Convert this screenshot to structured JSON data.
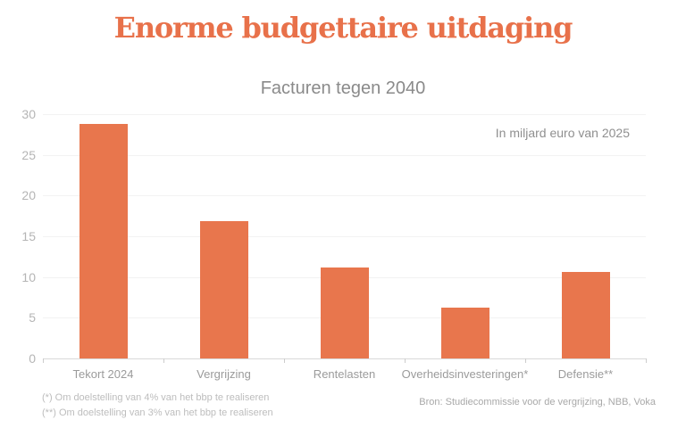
{
  "page": {
    "title": "Enorme budgettaire uitdaging",
    "subtitle": "Facturen tegen 2040",
    "unit_note": "In miljard euro van 2025",
    "footnotes": [
      "(*) Om doelstelling van 4% van het bbp te realiseren",
      "(**) Om doelstelling van 3% van het bbp te realiseren"
    ],
    "source": "Bron: Studiecommissie voor de vergrijzing, NBB, Voka"
  },
  "colors": {
    "accent_title": "#e8714a",
    "bar": "#e8764d",
    "subtitle_text": "#8a8a8a",
    "y_axis_label": "#b5b5b5",
    "category_label": "#9b9b9b",
    "gridline": "#f2f2f2",
    "axis_line": "#d9d9d9",
    "footnote_text": "#bdbdbd",
    "source_text": "#a8a8a8"
  },
  "chart_data": {
    "type": "bar",
    "title": "Facturen tegen 2040",
    "annotation": "In miljard euro van 2025",
    "categories": [
      "Tekort 2024",
      "Vergrijzing",
      "Rentelasten",
      "Overheidsinvesteringen*",
      "Defensie**"
    ],
    "values": [
      28.8,
      16.9,
      11.2,
      6.2,
      10.6
    ],
    "xlabel": "",
    "ylabel": "",
    "ylim": [
      0,
      30
    ],
    "yticks": [
      0,
      5,
      10,
      15,
      20,
      25,
      30
    ],
    "grid": true,
    "legend": false,
    "bar_color": "#e8764d"
  }
}
